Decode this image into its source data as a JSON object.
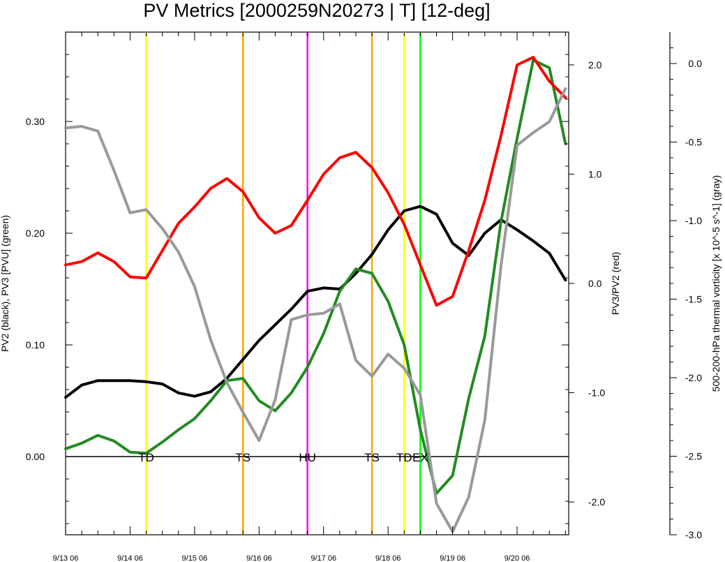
{
  "chart_data": {
    "type": "line",
    "title": "PV Metrics [2000259N20273 | T] [12-deg]",
    "x_tick_labels": [
      "9/13 06",
      "9/14 06",
      "9/15 06",
      "9/16 06",
      "9/17 06",
      "9/18 06",
      "9/19 06",
      "9/20 06"
    ],
    "x_tick_days": [
      0,
      1,
      2,
      3,
      4,
      5,
      6,
      7
    ],
    "xlim": [
      0,
      7.8
    ],
    "left_axis": {
      "label": "PV2 (black), PV3 [PVU] (green)",
      "ylim": [
        -0.07,
        0.38
      ],
      "ticks": [
        0.0,
        0.1,
        0.2,
        0.3
      ],
      "tick_labels": [
        "0.00",
        "0.10",
        "0.20",
        "0.30"
      ]
    },
    "right_axis_red": {
      "label": "PV3/PV2 (red)",
      "ylim": [
        -2.3,
        2.3
      ],
      "ticks": [
        -2.0,
        -1.0,
        0.0,
        1.0,
        2.0
      ],
      "tick_labels": [
        "-2.0",
        "-1.0",
        "0.0",
        "1.0",
        "2.0"
      ]
    },
    "right_axis_gray": {
      "label": "500-200-hPa thermal vorticity [x 10^-5 s^-1] (gray)",
      "ylim": [
        -3.0,
        0.2
      ],
      "ticks": [
        0.0,
        -0.5,
        -1.0,
        -1.5,
        -2.0,
        -2.5,
        -3.0
      ],
      "tick_labels": [
        "0.0",
        "-0.5",
        "-1.0",
        "-1.5",
        "-2.0",
        "-2.5",
        "-3.0"
      ]
    },
    "x": [
      0,
      0.25,
      0.5,
      0.75,
      1.0,
      1.25,
      1.5,
      1.75,
      2.0,
      2.25,
      2.5,
      2.75,
      3.0,
      3.25,
      3.5,
      3.75,
      4.0,
      4.25,
      4.5,
      4.75,
      5.0,
      5.25,
      5.5,
      5.75,
      6.0,
      6.25,
      6.5,
      6.75,
      7.0,
      7.25,
      7.5,
      7.75
    ],
    "series": [
      {
        "axis": "left",
        "color": "#000000",
        "values": [
          0.053,
          0.064,
          0.068,
          0.068,
          0.068,
          0.067,
          0.065,
          0.057,
          0.054,
          0.058,
          0.07,
          0.087,
          0.104,
          0.118,
          0.132,
          0.148,
          0.151,
          0.15,
          0.164,
          0.181,
          0.203,
          0.22,
          0.224,
          0.217,
          0.191,
          0.18,
          0.2,
          0.212,
          0.203,
          0.193,
          0.182,
          0.158
        ]
      },
      {
        "axis": "left",
        "color": "#228b22",
        "values": [
          0.007,
          0.012,
          0.019,
          0.014,
          0.004,
          0.003,
          0.013,
          0.024,
          0.034,
          0.05,
          0.068,
          0.07,
          0.05,
          0.041,
          0.057,
          0.08,
          0.11,
          0.148,
          0.168,
          0.164,
          0.139,
          0.1,
          0.024,
          -0.033,
          -0.017,
          0.052,
          0.108,
          0.21,
          0.285,
          0.355,
          0.348,
          0.28
        ]
      },
      {
        "axis": "red",
        "color": "#ff0000",
        "values": [
          0.17,
          0.2,
          0.28,
          0.2,
          0.06,
          0.05,
          0.3,
          0.55,
          0.7,
          0.87,
          0.96,
          0.84,
          0.6,
          0.46,
          0.53,
          0.76,
          1.0,
          1.15,
          1.2,
          1.06,
          0.83,
          0.54,
          0.17,
          -0.2,
          -0.12,
          0.3,
          0.76,
          1.35,
          2.0,
          2.07,
          1.85,
          1.7
        ]
      },
      {
        "axis": "gray",
        "color": "#999999",
        "values": [
          -0.41,
          -0.4,
          -0.43,
          -0.68,
          -0.95,
          -0.93,
          -1.05,
          -1.2,
          -1.42,
          -1.76,
          -2.03,
          -2.22,
          -2.4,
          -2.14,
          -1.63,
          -1.6,
          -1.59,
          -1.53,
          -1.89,
          -1.99,
          -1.85,
          -1.94,
          -2.11,
          -2.8,
          -2.98,
          -2.76,
          -2.27,
          -1.29,
          -0.52,
          -0.44,
          -0.37,
          -0.16
        ]
      }
    ],
    "zero_line": 0.0,
    "stage_markers": [
      {
        "label": "TD",
        "x": 1.25,
        "color": "#ffff00"
      },
      {
        "label": "TS",
        "x": 2.75,
        "color": "#ffa500"
      },
      {
        "label": "HU",
        "x": 3.75,
        "color": "#ff00ff"
      },
      {
        "label": "TS",
        "x": 4.75,
        "color": "#ffa500"
      },
      {
        "label": "TD",
        "x": 5.25,
        "color": "#ffff00"
      },
      {
        "label": "EX",
        "x": 5.5,
        "color": "#00ff00"
      }
    ]
  }
}
